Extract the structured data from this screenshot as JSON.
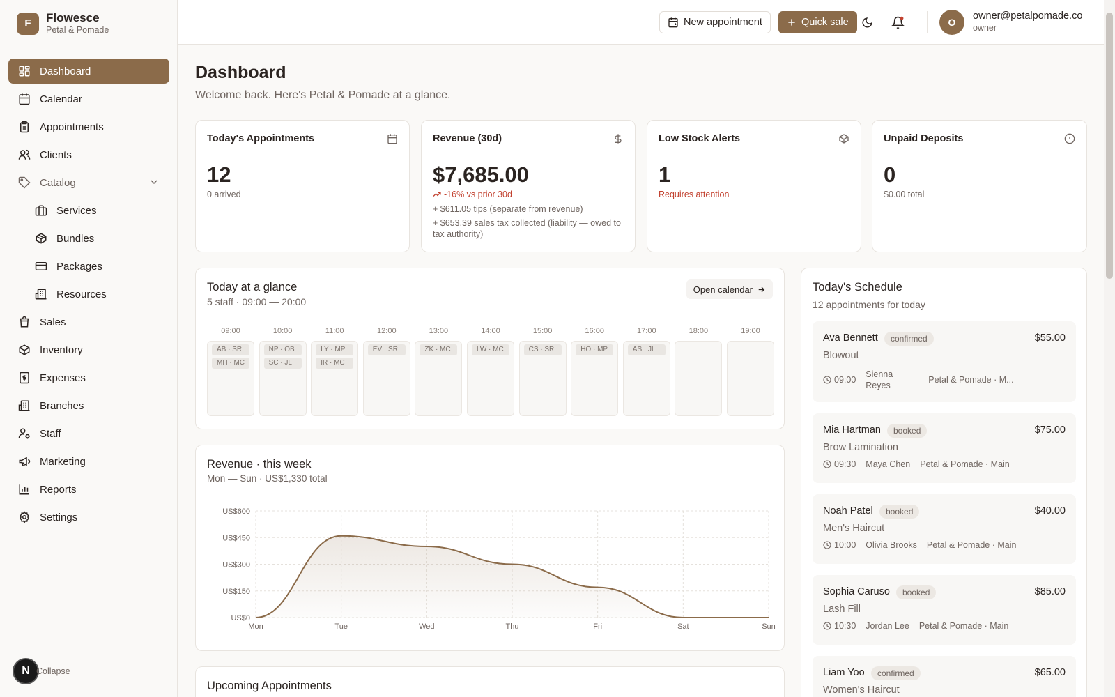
{
  "brand": {
    "initial": "F",
    "name": "Flowesce",
    "subtitle": "Petal & Pomade"
  },
  "sidebar": {
    "items": [
      {
        "label": "Dashboard",
        "icon": "dashboard-icon"
      },
      {
        "label": "Calendar",
        "icon": "calendar-icon"
      },
      {
        "label": "Appointments",
        "icon": "clipboard-icon"
      },
      {
        "label": "Clients",
        "icon": "users-icon"
      },
      {
        "label": "Catalog",
        "icon": "tag-icon"
      },
      {
        "label": "Services",
        "icon": "briefcase-icon"
      },
      {
        "label": "Bundles",
        "icon": "box-icon"
      },
      {
        "label": "Packages",
        "icon": "credit-card-icon"
      },
      {
        "label": "Resources",
        "icon": "building-icon"
      },
      {
        "label": "Sales",
        "icon": "shopping-bag-icon"
      },
      {
        "label": "Inventory",
        "icon": "package-icon"
      },
      {
        "label": "Expenses",
        "icon": "receipt-icon"
      },
      {
        "label": "Branches",
        "icon": "building-icon"
      },
      {
        "label": "Staff",
        "icon": "user-cog-icon"
      },
      {
        "label": "Marketing",
        "icon": "megaphone-icon"
      },
      {
        "label": "Reports",
        "icon": "bar-chart-icon"
      },
      {
        "label": "Settings",
        "icon": "gear-icon"
      }
    ],
    "collapse_label": "Collapse",
    "dev_badge": "N"
  },
  "topbar": {
    "new_appointment_label": "New appointment",
    "quick_sale_label": "Quick sale",
    "user_initial": "O",
    "user_email": "owner@petalpomade.co",
    "user_role": "owner"
  },
  "page": {
    "title": "Dashboard",
    "subtitle": "Welcome back. Here's Petal & Pomade at a glance."
  },
  "stats": {
    "appointments": {
      "title": "Today's Appointments",
      "value": "12",
      "note": "0 arrived"
    },
    "revenue": {
      "title": "Revenue (30d)",
      "value": "$7,685.00",
      "change": "-16% vs prior 30d",
      "tips": "+ $611.05 tips (separate from revenue)",
      "tax": "+ $653.39 sales tax collected (liability — owed to tax authority)"
    },
    "low_stock": {
      "title": "Low Stock Alerts",
      "value": "1",
      "note": "Requires attention"
    },
    "deposits": {
      "title": "Unpaid Deposits",
      "value": "0",
      "note": "$0.00 total"
    }
  },
  "glance": {
    "title": "Today at a glance",
    "subtitle": "5 staff · 09:00 — 20:00",
    "open_calendar_label": "Open calendar",
    "hours": [
      {
        "label": "09:00",
        "chips": [
          "AB · SR",
          "MH · MC"
        ]
      },
      {
        "label": "10:00",
        "chips": [
          "NP · OB",
          "SC · JL"
        ]
      },
      {
        "label": "11:00",
        "chips": [
          "LY · MP",
          "IR · MC"
        ]
      },
      {
        "label": "12:00",
        "chips": [
          "EV · SR"
        ]
      },
      {
        "label": "13:00",
        "chips": [
          "ZK · MC"
        ]
      },
      {
        "label": "14:00",
        "chips": [
          "LW · MC"
        ]
      },
      {
        "label": "15:00",
        "chips": [
          "CS · SR"
        ]
      },
      {
        "label": "16:00",
        "chips": [
          "HO · MP"
        ]
      },
      {
        "label": "17:00",
        "chips": [
          "AS · JL"
        ]
      },
      {
        "label": "18:00",
        "chips": []
      },
      {
        "label": "19:00",
        "chips": []
      }
    ]
  },
  "revenue_chart": {
    "title": "Revenue · this week",
    "subtitle": "Mon — Sun · US$1,330 total"
  },
  "chart_data": {
    "type": "area",
    "categories": [
      "Mon",
      "Tue",
      "Wed",
      "Thu",
      "Fri",
      "Sat",
      "Sun"
    ],
    "values": [
      0,
      460,
      400,
      300,
      170,
      0,
      0
    ],
    "yticks": [
      "US$0",
      "US$150",
      "US$300",
      "US$450",
      "US$600"
    ],
    "ylim": [
      0,
      600
    ],
    "grid": true,
    "line_color": "#8b6b4a"
  },
  "schedule": {
    "title": "Today's Schedule",
    "subtitle": "12 appointments for today",
    "items": [
      {
        "name": "Ava Bennett",
        "status": "confirmed",
        "price": "$55.00",
        "service": "Blowout",
        "time": "09:00",
        "staff": "Sienna Reyes",
        "location": "Petal & Pomade · M..."
      },
      {
        "name": "Mia Hartman",
        "status": "booked",
        "price": "$75.00",
        "service": "Brow Lamination",
        "time": "09:30",
        "staff": "Maya Chen",
        "location": "Petal & Pomade · Main"
      },
      {
        "name": "Noah Patel",
        "status": "booked",
        "price": "$40.00",
        "service": "Men's Haircut",
        "time": "10:00",
        "staff": "Olivia Brooks",
        "location": "Petal & Pomade · Main"
      },
      {
        "name": "Sophia Caruso",
        "status": "booked",
        "price": "$85.00",
        "service": "Lash Fill",
        "time": "10:30",
        "staff": "Jordan Lee",
        "location": "Petal & Pomade · Main"
      },
      {
        "name": "Liam Yoo",
        "status": "confirmed",
        "price": "$65.00",
        "service": "Women's Haircut",
        "time": "",
        "staff": "",
        "location": ""
      }
    ]
  },
  "upcoming": {
    "title": "Upcoming Appointments"
  },
  "colors": {
    "accent": "#8b6b4a",
    "danger": "#c2412f"
  }
}
